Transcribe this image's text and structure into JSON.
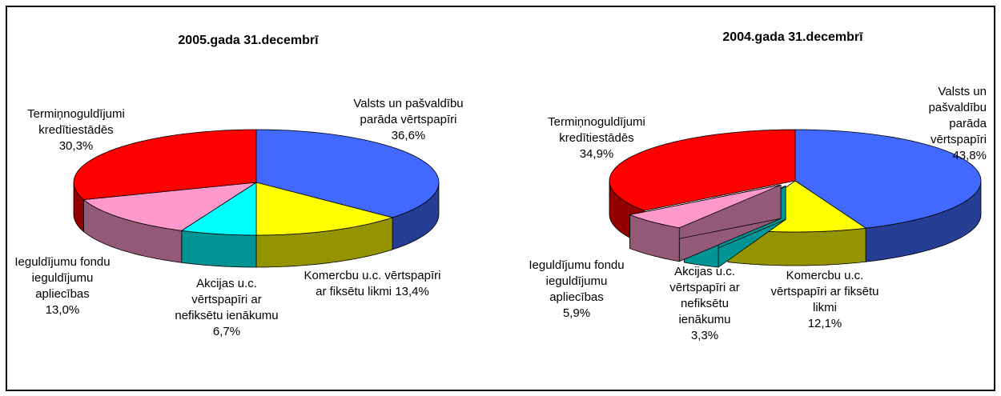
{
  "chart_data": [
    {
      "type": "pie",
      "title": "2005.gada 31.decembrī",
      "categories": [
        "Valsts un pašvaldību parāda vērtspapīri",
        "Komercbu u.c. vērtspapīri ar fiksētu likmi",
        "Akcijas u.c. vērtspapīri ar nefiksētu ienākumu",
        "Ieguldījumu fondu ieguldījumu apliecības",
        "Termiņnoguldījumi kredītiestādēs"
      ],
      "values": [
        36.6,
        13.4,
        6.7,
        13.0,
        30.3
      ],
      "value_labels": [
        "36,6%",
        "13,4%",
        "6,7%",
        "13,0%",
        "30,3%"
      ],
      "colors": [
        "#4169ff",
        "#ffff00",
        "#00ffff",
        "#ff99cc",
        "#ff0000"
      ],
      "explode": [
        false,
        false,
        false,
        false,
        false
      ]
    },
    {
      "type": "pie",
      "title": "2004.gada 31.decembrī",
      "categories": [
        "Valsts un pašvaldību parāda vērtspapīri",
        "Komercbu u.c. vērtspapīri ar fiksētu likmi",
        "Akcijas u.c. vērtspapīri ar nefiksētu ienākumu",
        "Ieguldījumu fondu ieguldījumu apliecības",
        "Termiņnoguldījumi kredītiestādēs"
      ],
      "values": [
        43.8,
        12.1,
        3.3,
        5.9,
        34.9
      ],
      "value_labels": [
        "43,8%",
        "12,1%",
        "3,3%",
        "5,9%",
        "34,9%"
      ],
      "colors": [
        "#4169ff",
        "#ffff00",
        "#00ffff",
        "#ff99cc",
        "#ff0000"
      ],
      "explode": [
        false,
        false,
        true,
        true,
        false
      ]
    }
  ]
}
